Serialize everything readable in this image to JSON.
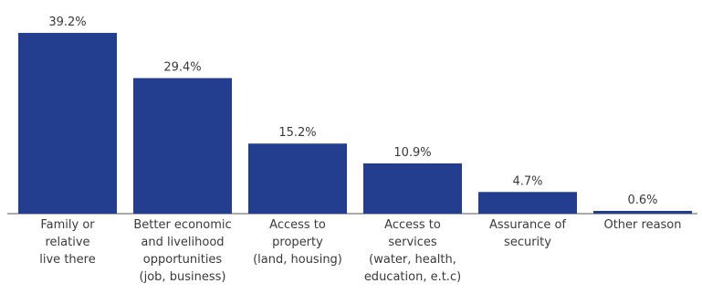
{
  "chart_data": {
    "type": "bar",
    "categories": [
      [
        "Family or",
        "relative",
        "live there"
      ],
      [
        "Better economic",
        "and livelihood",
        "opportunities",
        "(job, business)"
      ],
      [
        "Access to",
        "property",
        "(land, housing)"
      ],
      [
        "Access to",
        "services",
        "(water, health,",
        "education, e.t.c)"
      ],
      [
        "Assurance of",
        "security"
      ],
      [
        "Other reason"
      ]
    ],
    "values": [
      39.2,
      29.4,
      15.2,
      10.9,
      4.7,
      0.6
    ],
    "value_labels": [
      "39.2%",
      "29.4%",
      "15.2%",
      "10.9%",
      "4.7%",
      "0.6%"
    ],
    "bar_color": "#233d8f",
    "ylim": [
      0,
      40
    ],
    "grid": false,
    "legend": "none"
  }
}
